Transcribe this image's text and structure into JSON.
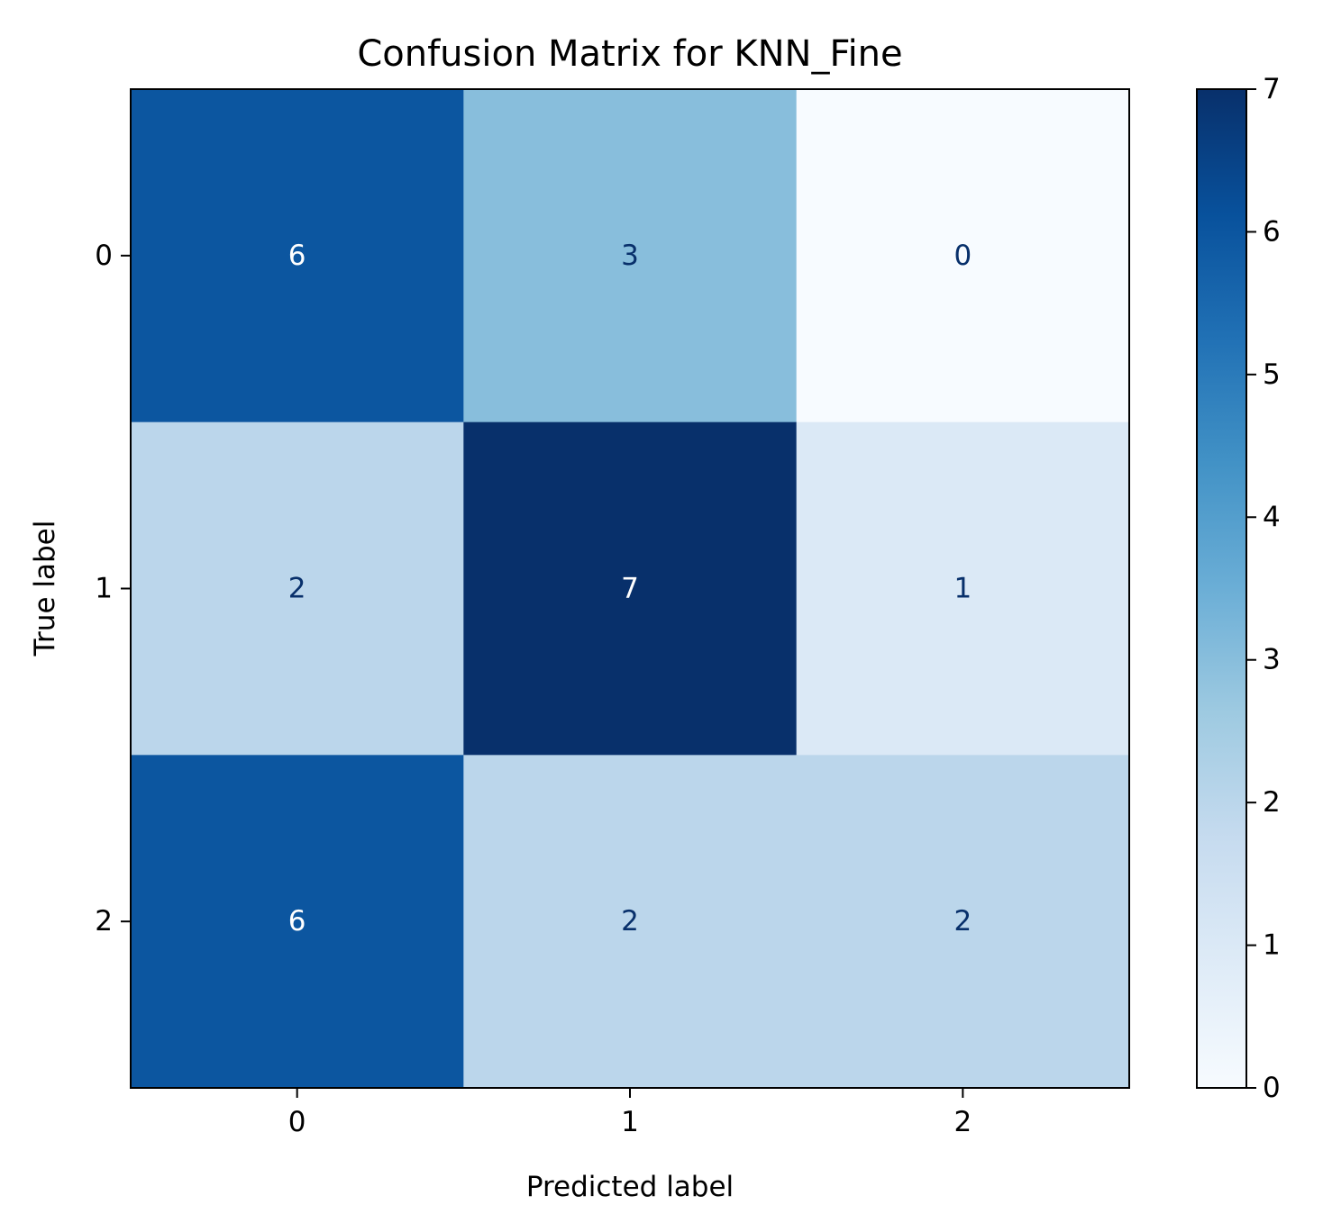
{
  "chart_data": {
    "type": "heatmap",
    "title": "Confusion Matrix for KNN_Fine",
    "xlabel": "Predicted label",
    "ylabel": "True label",
    "x_categories": [
      "0",
      "1",
      "2"
    ],
    "y_categories": [
      "0",
      "1",
      "2"
    ],
    "matrix": [
      [
        6,
        3,
        0
      ],
      [
        2,
        7,
        1
      ],
      [
        6,
        2,
        2
      ]
    ],
    "colormap": "Blues",
    "colorbar": {
      "vmin": 0,
      "vmax": 7,
      "ticks": [
        "0",
        "1",
        "2",
        "3",
        "4",
        "5",
        "6",
        "7"
      ]
    },
    "colors": {
      "low": "#f7fbff",
      "high": "#08306b",
      "text_dark": "#08306b",
      "text_light": "#ffffff"
    }
  }
}
